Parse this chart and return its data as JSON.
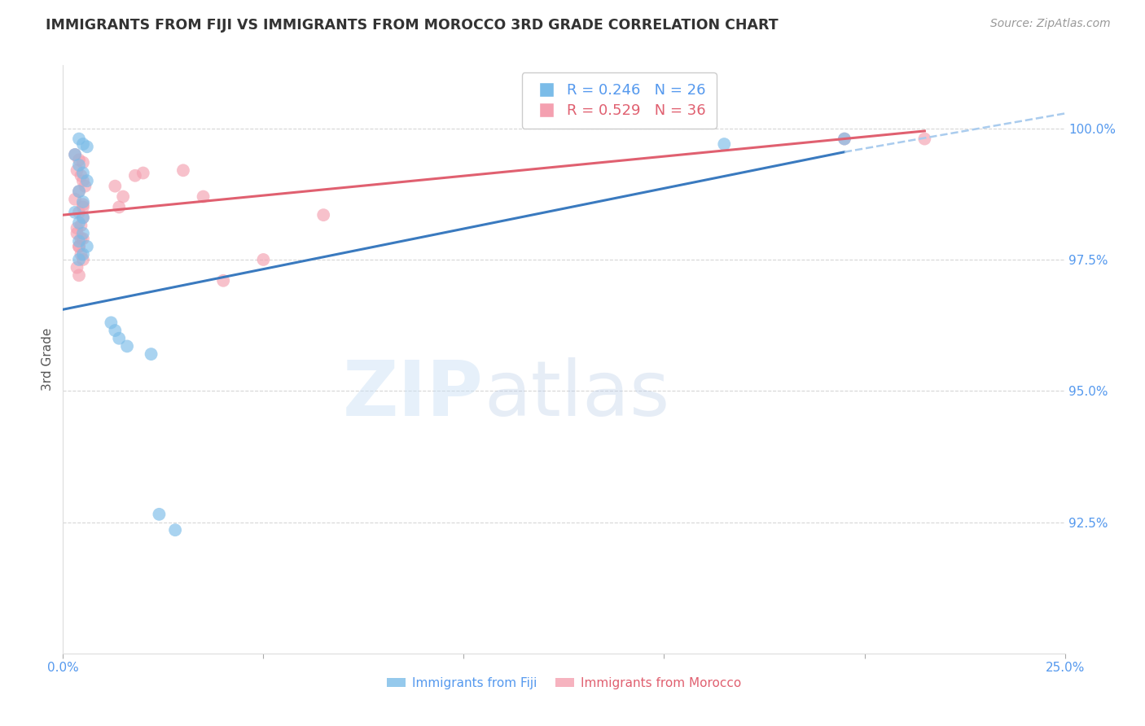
{
  "title": "IMMIGRANTS FROM FIJI VS IMMIGRANTS FROM MOROCCO 3RD GRADE CORRELATION CHART",
  "source": "Source: ZipAtlas.com",
  "ylabel": "3rd Grade",
  "ytick_values": [
    92.5,
    95.0,
    97.5,
    100.0
  ],
  "xlim": [
    0.0,
    25.0
  ],
  "ylim": [
    90.0,
    101.2
  ],
  "fiji_color": "#7bbce8",
  "morocco_color": "#f4a0b0",
  "fiji_line_color": "#3a7abf",
  "morocco_line_color": "#e06070",
  "dashed_color": "#aaccee",
  "fiji_R": 0.246,
  "fiji_N": 26,
  "morocco_R": 0.529,
  "morocco_N": 36,
  "fiji_scatter_x": [
    0.4,
    0.5,
    0.6,
    0.3,
    0.4,
    0.5,
    0.6,
    0.4,
    0.5,
    0.3,
    0.5,
    0.4,
    0.5,
    0.4,
    0.6,
    0.5,
    0.4,
    1.2,
    1.3,
    1.4,
    1.6,
    2.2,
    2.4,
    19.5,
    16.5,
    2.8
  ],
  "fiji_scatter_y": [
    99.8,
    99.7,
    99.65,
    99.5,
    99.3,
    99.15,
    99.0,
    98.8,
    98.6,
    98.4,
    98.3,
    98.2,
    98.0,
    97.85,
    97.75,
    97.6,
    97.5,
    96.3,
    96.15,
    96.0,
    95.85,
    95.7,
    92.65,
    99.8,
    99.7,
    92.35
  ],
  "morocco_scatter_x": [
    0.3,
    0.4,
    0.5,
    0.35,
    0.45,
    0.5,
    0.55,
    0.4,
    0.3,
    0.5,
    0.4,
    0.5,
    0.45,
    0.35,
    0.5,
    0.4,
    0.45,
    0.5,
    0.35,
    0.4,
    1.3,
    1.5,
    2.0,
    3.5,
    3.0,
    5.0,
    6.5,
    4.0,
    1.8,
    1.4,
    0.4,
    0.45,
    0.5,
    0.35,
    19.5,
    21.5
  ],
  "morocco_scatter_y": [
    99.5,
    99.4,
    99.35,
    99.2,
    99.1,
    99.0,
    98.9,
    98.8,
    98.65,
    98.5,
    98.4,
    98.3,
    98.15,
    98.0,
    97.9,
    97.75,
    97.6,
    97.5,
    97.35,
    97.2,
    98.9,
    98.7,
    99.15,
    98.7,
    99.2,
    97.5,
    98.35,
    97.1,
    99.1,
    98.5,
    97.75,
    97.9,
    98.55,
    98.1,
    99.8,
    99.8
  ],
  "fiji_line_x": [
    0.0,
    19.5
  ],
  "fiji_line_y": [
    96.55,
    99.55
  ],
  "morocco_line_x": [
    0.0,
    21.5
  ],
  "morocco_line_y": [
    98.35,
    99.95
  ],
  "dashed_line_x": [
    19.5,
    25.5
  ],
  "dashed_line_y": [
    99.55,
    100.35
  ],
  "watermark_zip": "ZIP",
  "watermark_atlas": "atlas",
  "background_color": "#ffffff",
  "grid_color": "#cccccc",
  "title_color": "#333333",
  "tick_label_color": "#5599ee"
}
